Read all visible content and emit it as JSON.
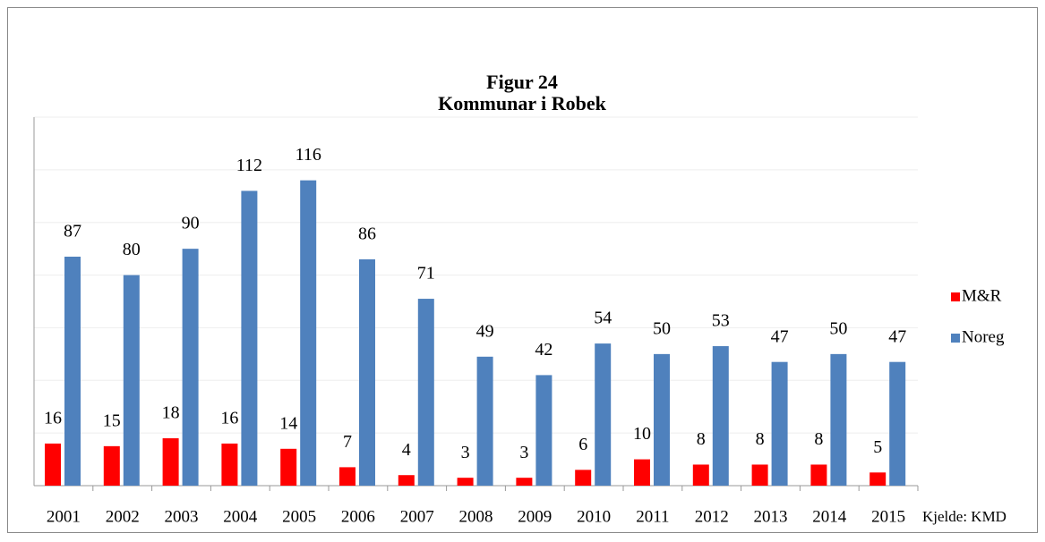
{
  "chart_data": {
    "type": "bar",
    "title": "Figur 24",
    "subtitle": "Kommunar i Robek",
    "source": "Kjelde: KMD",
    "categories": [
      "2001",
      "2002",
      "2003",
      "2004",
      "2005",
      "2006",
      "2007",
      "2008",
      "2009",
      "2010",
      "2011",
      "2012",
      "2013",
      "2014",
      "2015"
    ],
    "series": [
      {
        "name": "M&R",
        "color": "#ff0000",
        "values": [
          16,
          15,
          18,
          16,
          14,
          7,
          4,
          3,
          3,
          6,
          10,
          8,
          8,
          8,
          5
        ]
      },
      {
        "name": "Noreg",
        "color": "#4f81bd",
        "values": [
          87,
          80,
          90,
          112,
          116,
          86,
          71,
          49,
          42,
          54,
          50,
          53,
          47,
          50,
          47
        ]
      }
    ],
    "ylim": [
      0,
      140
    ],
    "yticks": [
      0,
      20,
      40,
      60,
      80,
      100,
      120,
      140
    ],
    "grid": true,
    "legend": "right"
  }
}
